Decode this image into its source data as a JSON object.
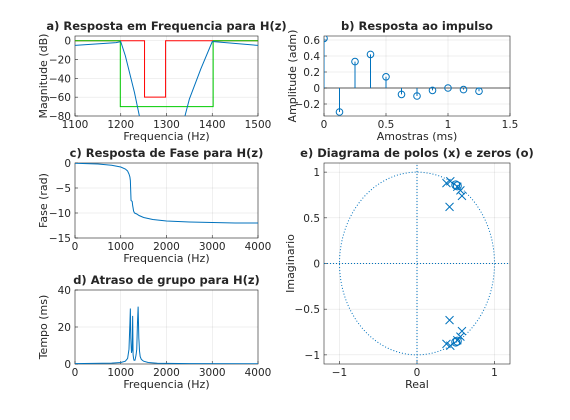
{
  "chart_data": [
    {
      "id": "a",
      "type": "line",
      "title": "a) Resposta em Frequencia para H(z)",
      "xlabel": "Frequencia (Hz)",
      "ylabel": "Magnitude (dB)",
      "xlim": [
        1100,
        1500
      ],
      "ylim": [
        -80,
        5
      ],
      "xticks": [
        1100,
        1200,
        1300,
        1400,
        1500
      ],
      "yticks": [
        0,
        -20,
        -40,
        -60,
        -80
      ],
      "grid": true,
      "series": [
        {
          "color": "#ff0000",
          "x": [
            1100,
            1245,
            1252,
            1252,
            1298,
            1298,
            1305,
            1500
          ],
          "y": [
            0,
            0,
            0,
            -60,
            -60,
            0,
            0,
            0
          ]
        },
        {
          "color": "#00cc00",
          "x": [
            1100,
            1196,
            1199,
            1199,
            1402,
            1402,
            1405,
            1500
          ],
          "y": [
            0,
            0,
            0,
            -70,
            -70,
            0,
            0,
            0
          ]
        },
        {
          "color": "#0072bd",
          "x": [
            1100,
            1190,
            1200,
            1210,
            1230,
            1245
          ],
          "y": [
            -5,
            -2,
            -1,
            -16,
            -55,
            -90
          ]
        },
        {
          "color": "#0072bd",
          "x": [
            1335,
            1350,
            1375,
            1400,
            1403,
            1500
          ],
          "y": [
            -90,
            -62,
            -30,
            -1,
            -1,
            -5
          ]
        }
      ]
    },
    {
      "id": "b",
      "type": "stem",
      "title": "b) Resposta ao impulso",
      "xlabel": "Amostras (ms)",
      "ylabel": "Amplitude (adm)",
      "xlim": [
        0,
        1.5
      ],
      "ylim": [
        -0.35,
        0.65
      ],
      "xticks": [
        0,
        0.5,
        1,
        1.5
      ],
      "yticks": [
        0.6,
        0.4,
        0.2,
        0,
        -0.2
      ],
      "grid": true,
      "color": "#0072bd",
      "x": [
        0,
        0.125,
        0.25,
        0.375,
        0.5,
        0.625,
        0.75,
        0.875,
        1.0,
        1.125,
        1.25
      ],
      "y": [
        0.62,
        -0.3,
        0.33,
        0.42,
        0.14,
        -0.08,
        -0.1,
        -0.03,
        0.0,
        -0.02,
        -0.04
      ]
    },
    {
      "id": "c",
      "type": "line",
      "title": "c) Resposta de Fase para H(z)",
      "xlabel": "Frequencia (Hz)",
      "ylabel": "Fase (rad)",
      "xlim": [
        0,
        4000
      ],
      "ylim": [
        -15,
        0
      ],
      "xticks": [
        0,
        1000,
        2000,
        3000,
        4000
      ],
      "yticks": [
        0,
        -5,
        -10,
        -15
      ],
      "grid": true,
      "series": [
        {
          "color": "#0072bd",
          "x": [
            0,
            500,
            800,
            1000,
            1100,
            1150,
            1180,
            1200,
            1210,
            1225,
            1240,
            1250,
            1260,
            1270,
            1280,
            1300,
            1350,
            1400,
            1500,
            1700,
            2000,
            2500,
            3000,
            3500,
            4000
          ],
          "y": [
            -0.05,
            -0.2,
            -0.45,
            -0.8,
            -1.2,
            -1.6,
            -2.2,
            -2.8,
            -3.5,
            -7.5,
            -7.6,
            -7.7,
            -8.5,
            -9.0,
            -9.6,
            -10.0,
            -10.2,
            -10.5,
            -10.9,
            -11.3,
            -11.6,
            -11.8,
            -11.9,
            -12.0,
            -12.0
          ]
        }
      ]
    },
    {
      "id": "d",
      "type": "line",
      "title": "d) Atraso de grupo para H(z)",
      "xlabel": "Frequencia (Hz)",
      "ylabel": "Tempo (ms)",
      "xlim": [
        0,
        4000
      ],
      "ylim": [
        0,
        40
      ],
      "xticks": [
        0,
        1000,
        2000,
        3000,
        4000
      ],
      "yticks": [
        0,
        20,
        40
      ],
      "grid": true,
      "series": [
        {
          "color": "#0072bd",
          "x": [
            0,
            800,
            1000,
            1100,
            1150,
            1180,
            1200,
            1210,
            1220,
            1235,
            1250,
            1260,
            1270,
            1280,
            1290,
            1300,
            1310,
            1320,
            1335,
            1350,
            1365,
            1380,
            1395,
            1400,
            1410,
            1425,
            1450,
            1500,
            1600,
            1800,
            2500,
            4000
          ],
          "y": [
            0.2,
            0.5,
            0.8,
            1.5,
            3,
            8,
            22,
            30,
            14,
            6,
            8,
            26,
            5,
            3,
            2,
            2,
            2,
            3,
            5,
            8,
            22,
            31,
            14,
            12,
            7,
            4,
            2.5,
            1.5,
            0.8,
            0.4,
            0.2,
            0.1
          ]
        }
      ]
    },
    {
      "id": "e",
      "type": "scatter",
      "title": "e) Diagrama de polos (x) e zeros (o)",
      "xlabel": "Real",
      "ylabel": "Imaginario",
      "xlim": [
        -1.2,
        1.2
      ],
      "ylim": [
        -1.1,
        1.1
      ],
      "xticks": [
        -1,
        0,
        1
      ],
      "yticks": [
        1,
        0.5,
        0,
        -0.5,
        -1
      ],
      "grid": true,
      "unit_circle": true,
      "poles": [
        [
          0.38,
          0.88
        ],
        [
          0.43,
          0.9
        ],
        [
          0.52,
          0.84
        ],
        [
          0.56,
          0.8
        ],
        [
          0.58,
          0.74
        ],
        [
          0.42,
          0.62
        ],
        [
          0.38,
          -0.88
        ],
        [
          0.43,
          -0.9
        ],
        [
          0.52,
          -0.84
        ],
        [
          0.56,
          -0.8
        ],
        [
          0.58,
          -0.74
        ],
        [
          0.42,
          -0.62
        ]
      ],
      "zeros": [
        [
          0.5,
          0.86
        ],
        [
          0.52,
          0.85
        ],
        [
          0.5,
          -0.86
        ],
        [
          0.52,
          -0.85
        ]
      ]
    }
  ]
}
